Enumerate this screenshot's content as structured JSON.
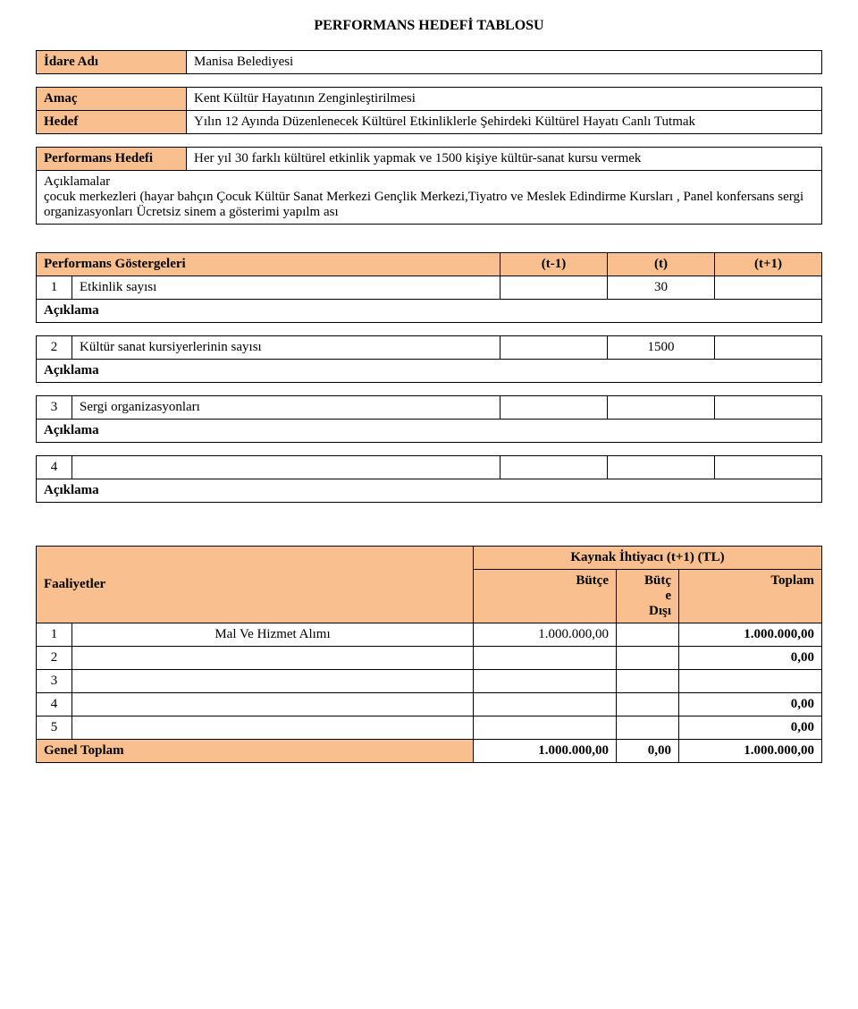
{
  "title": "PERFORMANS HEDEFİ TABLOSU",
  "idare": {
    "label": "İdare Adı",
    "value": "Manisa Belediyesi"
  },
  "amac": {
    "label": "Amaç",
    "value": "Kent Kültür Hayatının Zenginleştirilmesi"
  },
  "hedef": {
    "label": "Hedef",
    "value": "Yılın 12 Ayında Düzenlenecek Kültürel Etkinliklerle Şehirdeki Kültürel Hayatı Canlı Tutmak"
  },
  "perf_hedefi": {
    "label": "Performans Hedefi",
    "value": "Her yıl 30 farklı kültürel etkinlik yapmak ve 1500 kişiye kültür-sanat kursu vermek"
  },
  "aciklamalar_label": "Açıklamalar",
  "aciklamalar_text": "çocuk merkezleri (hayar bahçın Çocuk Kültür Sanat Merkezi Gençlik Merkezi,Tiyatro ve Meslek Edindirme Kursları , Panel konfersans sergi organizasyonları Ücretsiz sinem a gösterimi yapılm ası",
  "pg": {
    "header": "Performans Göstergeleri",
    "cols": {
      "tm1": "(t-1)",
      "t": "(t)",
      "tp1": "(t+1)"
    },
    "aciklama": "Açıklama",
    "rows": [
      {
        "idx": "1",
        "name": "Etkinlik sayısı",
        "tm1": "",
        "t": "30",
        "tp1": ""
      },
      {
        "idx": "2",
        "name": "Kültür sanat kursiyerlerinin sayısı",
        "tm1": "",
        "t": "1500",
        "tp1": ""
      },
      {
        "idx": "3",
        "name": "Sergi organizasyonları",
        "tm1": "",
        "t": "",
        "tp1": ""
      },
      {
        "idx": "4",
        "name": "",
        "tm1": "",
        "t": "",
        "tp1": ""
      }
    ]
  },
  "faal": {
    "header": "Faaliyetler",
    "kaynak_header": "Kaynak İhtiyacı (t+1) (TL)",
    "butce": "Bütçe",
    "butce_disi1": "Bütç",
    "butce_disi2": "e",
    "butce_disi3": "Dışı",
    "toplam": "Toplam",
    "rows": [
      {
        "idx": "1",
        "name": "Mal Ve Hizmet Alımı",
        "butce": "1.000.000,00",
        "disi": "",
        "toplam": "1.000.000,00"
      },
      {
        "idx": "2",
        "name": "",
        "butce": "",
        "disi": "",
        "toplam": "0,00"
      },
      {
        "idx": "3",
        "name": "",
        "butce": "",
        "disi": "",
        "toplam": ""
      },
      {
        "idx": "4",
        "name": "",
        "butce": "",
        "disi": "",
        "toplam": "0,00"
      },
      {
        "idx": "5",
        "name": "",
        "butce": "",
        "disi": "",
        "toplam": "0,00"
      }
    ],
    "genel_label": "Genel Toplam",
    "genel": {
      "butce": "1.000.000,00",
      "disi": "0,00",
      "toplam": "1.000.000,00"
    }
  },
  "colors": {
    "label_bg": "#fabf8f",
    "border": "#000000",
    "page_bg": "#ffffff"
  }
}
